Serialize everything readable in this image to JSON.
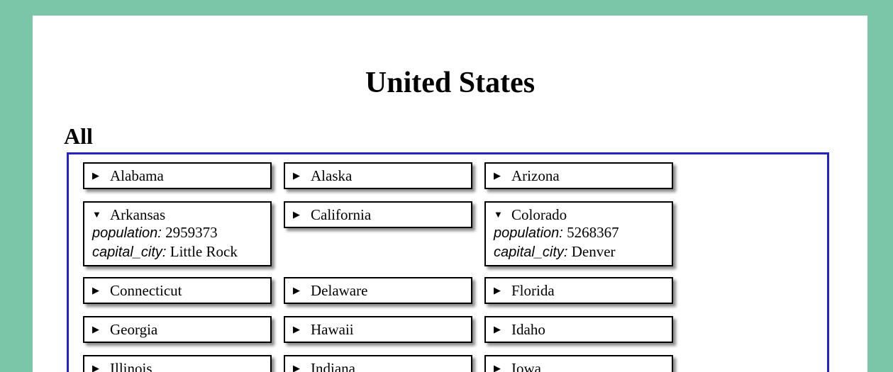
{
  "page": {
    "title": "United States",
    "section_heading": "All"
  },
  "icons": {
    "collapsed": "▶",
    "expanded": "▼"
  },
  "labels": {
    "population": "population:",
    "capital_city": "capital_city:"
  },
  "states": [
    {
      "name": "Alabama",
      "expanded": false
    },
    {
      "name": "Alaska",
      "expanded": false
    },
    {
      "name": "Arizona",
      "expanded": false
    },
    {
      "name": "Arkansas",
      "expanded": true,
      "population": "2959373",
      "capital_city": "Little Rock"
    },
    {
      "name": "California",
      "expanded": false
    },
    {
      "name": "Colorado",
      "expanded": true,
      "population": "5268367",
      "capital_city": "Denver"
    },
    {
      "name": "Connecticut",
      "expanded": false
    },
    {
      "name": "Delaware",
      "expanded": false
    },
    {
      "name": "Florida",
      "expanded": false
    },
    {
      "name": "Georgia",
      "expanded": false
    },
    {
      "name": "Hawaii",
      "expanded": false
    },
    {
      "name": "Idaho",
      "expanded": false
    },
    {
      "name": "Illinois",
      "expanded": false
    },
    {
      "name": "Indiana",
      "expanded": false
    },
    {
      "name": "Iowa",
      "expanded": false
    }
  ]
}
